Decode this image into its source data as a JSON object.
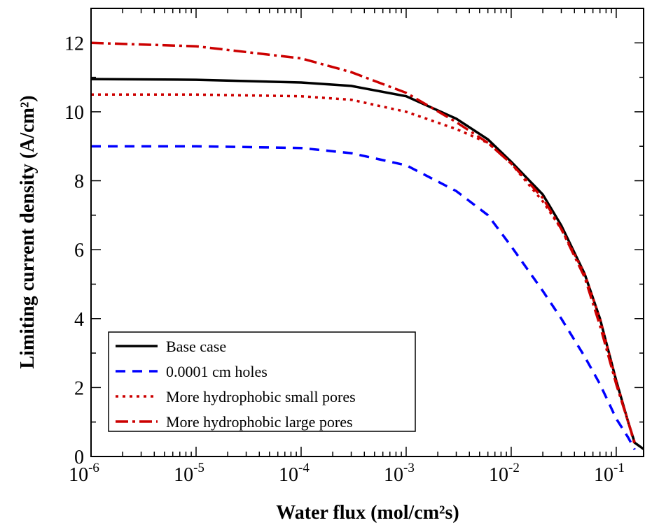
{
  "chart_data": {
    "type": "line",
    "xlabel": "Water flux (mol/cm²s)",
    "ylabel": "Limiting current density (A/cm²)",
    "xscale": "log",
    "xlim": [
      1e-06,
      0.185
    ],
    "ylim": [
      0,
      13
    ],
    "xticks": [
      {
        "value": 1e-06,
        "label": "10",
        "sup": "-6"
      },
      {
        "value": 1e-05,
        "label": "10",
        "sup": "-5"
      },
      {
        "value": 0.0001,
        "label": "10",
        "sup": "-4"
      },
      {
        "value": 0.001,
        "label": "10",
        "sup": "-3"
      },
      {
        "value": 0.01,
        "label": "10",
        "sup": "-2"
      },
      {
        "value": 0.1,
        "label": "10",
        "sup": "-1"
      }
    ],
    "yticks": [
      0,
      2,
      4,
      6,
      8,
      10,
      12
    ],
    "minor_ticks": true,
    "legend": "lower left",
    "series": [
      {
        "name": "Base case",
        "color": "#000000",
        "dash": "none",
        "x": [
          1e-06,
          1e-05,
          0.0001,
          0.0003,
          0.001,
          0.003,
          0.006,
          0.01,
          0.02,
          0.03,
          0.05,
          0.07,
          0.1,
          0.13,
          0.15,
          0.185
        ],
        "values": [
          10.95,
          10.93,
          10.85,
          10.75,
          10.45,
          9.8,
          9.2,
          8.55,
          7.6,
          6.7,
          5.3,
          4.0,
          2.2,
          1.0,
          0.4,
          0.2
        ]
      },
      {
        "name": "0.0001 cm holes",
        "color": "#0000ff",
        "dash": "14 10",
        "x": [
          1e-06,
          1e-05,
          0.0001,
          0.0003,
          0.001,
          0.003,
          0.006,
          0.01,
          0.02,
          0.03,
          0.05,
          0.07,
          0.1,
          0.13,
          0.15,
          0.185
        ],
        "values": [
          9.0,
          9.0,
          8.95,
          8.8,
          8.45,
          7.7,
          7.0,
          6.1,
          4.8,
          4.0,
          2.9,
          2.1,
          1.1,
          0.55,
          0.2,
          null
        ]
      },
      {
        "name": "More hydrophobic small pores",
        "color": "#cc0000",
        "dash": "4 6",
        "x": [
          1e-06,
          1e-05,
          0.0001,
          0.0003,
          0.001,
          0.003,
          0.006,
          0.01,
          0.02,
          0.03,
          0.05,
          0.07,
          0.1,
          0.13,
          0.15,
          0.185
        ],
        "values": [
          10.5,
          10.5,
          10.45,
          10.35,
          10.0,
          9.5,
          9.1,
          8.5,
          7.4,
          6.6,
          5.3,
          4.0,
          2.2,
          1.0,
          0.35,
          null
        ]
      },
      {
        "name": "More hydrophobic large pores",
        "color": "#cc0000",
        "dash": "18 6 4 6",
        "x": [
          1e-06,
          1e-05,
          0.0001,
          0.0003,
          0.001,
          0.003,
          0.006,
          0.01,
          0.02,
          0.03,
          0.05,
          0.07,
          0.1,
          0.13,
          0.15,
          0.185
        ],
        "values": [
          12.0,
          11.9,
          11.55,
          11.15,
          10.55,
          9.7,
          9.1,
          8.5,
          7.5,
          6.6,
          5.2,
          3.8,
          2.1,
          1.0,
          0.4,
          null
        ]
      }
    ]
  }
}
